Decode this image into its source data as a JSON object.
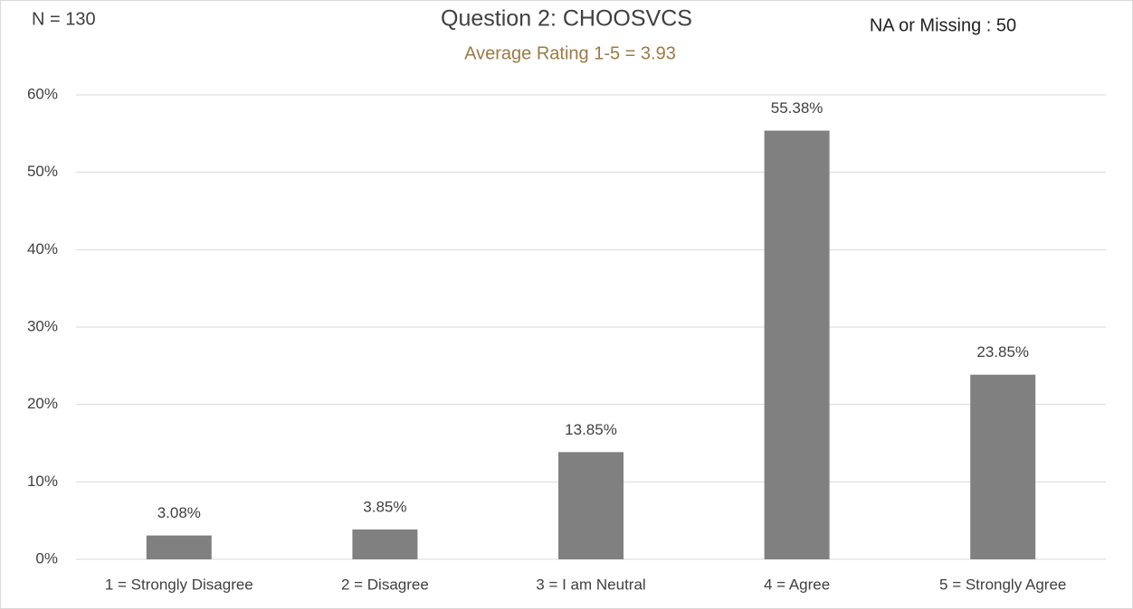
{
  "chart_data": {
    "type": "bar",
    "title": "Question 2: CHOOSVCS",
    "subtitle": "Average Rating 1-5 = 3.93",
    "annotations": [
      "N = 130",
      "NA or Missing : 50"
    ],
    "categories": [
      "1 = Strongly Disagree",
      "2 = Disagree",
      "3 = I am Neutral",
      "4 = Agree",
      "5 = Strongly Agree"
    ],
    "values": [
      3.08,
      3.85,
      13.85,
      55.38,
      23.85
    ],
    "value_labels": [
      "3.08%",
      "3.85%",
      "13.85%",
      "55.38%",
      "23.85%"
    ],
    "color": "#808080",
    "ylim": [
      0,
      60
    ],
    "yticks": [
      {
        "value": 0,
        "label": "0%"
      },
      {
        "value": 10,
        "label": "10%"
      },
      {
        "value": 20,
        "label": "20%"
      },
      {
        "value": 30,
        "label": "30%"
      },
      {
        "value": 40,
        "label": "40%"
      },
      {
        "value": 50,
        "label": "50%"
      },
      {
        "value": 60,
        "label": "60%"
      }
    ],
    "grid": true
  }
}
